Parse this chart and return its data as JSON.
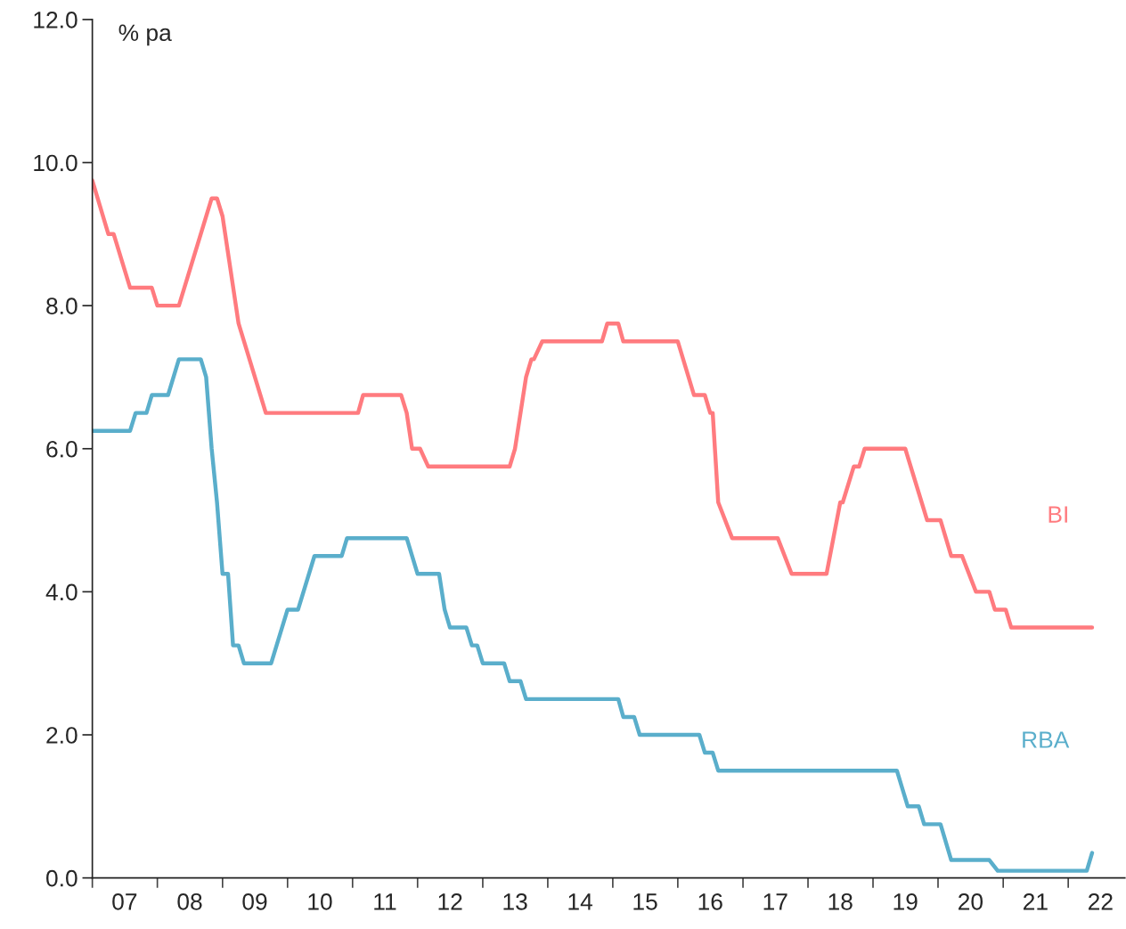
{
  "chart_data": {
    "type": "line",
    "ylabel": "% pa",
    "xlim": [
      "2007-01-01",
      "2022-11-15"
    ],
    "xticks": [
      {
        "value": "2007-01-01",
        "label": null
      },
      {
        "value": "2008-01-01",
        "label": null
      },
      {
        "value": "2009-01-01",
        "label": null
      },
      {
        "value": "2010-01-01",
        "label": null
      },
      {
        "value": "2011-01-01",
        "label": null
      },
      {
        "value": "2012-01-01",
        "label": null
      },
      {
        "value": "2013-01-01",
        "label": null
      },
      {
        "value": "2014-01-01",
        "label": null
      },
      {
        "value": "2015-01-01",
        "label": null
      },
      {
        "value": "2016-01-01",
        "label": null
      },
      {
        "value": "2017-01-01",
        "label": null
      },
      {
        "value": "2018-01-01",
        "label": null
      },
      {
        "value": "2019-01-01",
        "label": null
      },
      {
        "value": "2020-01-01",
        "label": null
      },
      {
        "value": "2021-01-01",
        "label": null
      },
      {
        "value": "2022-01-01",
        "label": null
      },
      {
        "value": "2007-07-01",
        "label": "07"
      },
      {
        "value": "2008-07-01",
        "label": "08"
      },
      {
        "value": "2009-07-01",
        "label": "09"
      },
      {
        "value": "2010-07-01",
        "label": "10"
      },
      {
        "value": "2011-07-01",
        "label": "11"
      },
      {
        "value": "2012-07-01",
        "label": "12"
      },
      {
        "value": "2013-07-01",
        "label": "13"
      },
      {
        "value": "2014-07-01",
        "label": "14"
      },
      {
        "value": "2015-07-01",
        "label": "15"
      },
      {
        "value": "2016-07-01",
        "label": "16"
      },
      {
        "value": "2017-07-01",
        "label": "17"
      },
      {
        "value": "2018-07-01",
        "label": "18"
      },
      {
        "value": "2019-07-01",
        "label": "19"
      },
      {
        "value": "2020-07-01",
        "label": "20"
      },
      {
        "value": "2021-07-01",
        "label": "21"
      },
      {
        "value": "2022-07-01",
        "label": "22"
      }
    ],
    "ylim": [
      0,
      12
    ],
    "yticks": [
      {
        "value": 0,
        "label": "0.0"
      },
      {
        "value": 2,
        "label": "2.0"
      },
      {
        "value": 4,
        "label": "4.0"
      },
      {
        "value": 6,
        "label": "6.0"
      },
      {
        "value": 8,
        "label": "8.0"
      },
      {
        "value": 10,
        "label": "10.0"
      },
      {
        "value": 12,
        "label": "12.0"
      }
    ],
    "grid": false,
    "legend": false,
    "marker": "none",
    "line_style": "solid",
    "series": [
      {
        "name": "BI",
        "color": "#ff7b7f",
        "x": [
          "2007-01-01",
          "2007-04-01",
          "2007-05-01",
          "2007-08-01",
          "2007-12-01",
          "2008-01-01",
          "2008-05-01",
          "2008-11-01",
          "2008-12-01",
          "2009-01-01",
          "2009-04-01",
          "2009-09-01",
          "2011-02-01",
          "2011-03-01",
          "2011-10-01",
          "2011-11-01",
          "2011-12-01",
          "2012-01-15",
          "2012-03-01",
          "2013-06-01",
          "2013-07-01",
          "2013-09-01",
          "2013-10-01",
          "2013-10-15",
          "2013-12-01",
          "2014-11-01",
          "2014-12-01",
          "2015-02-01",
          "2015-03-01",
          "2016-01-01",
          "2016-04-01",
          "2016-06-01",
          "2016-07-01",
          "2016-07-15",
          "2016-08-15",
          "2016-11-01",
          "2017-07-15",
          "2017-10-01",
          "2018-04-15",
          "2018-07-01",
          "2018-07-15",
          "2018-09-15",
          "2018-10-15",
          "2018-11-15",
          "2019-07-01",
          "2019-11-01",
          "2020-01-15",
          "2020-03-15",
          "2020-05-15",
          "2020-08-01",
          "2020-10-15",
          "2020-11-15",
          "2021-01-15",
          "2021-02-15",
          "2022-05-15"
        ],
        "values": [
          9.75,
          9.0,
          9.0,
          8.25,
          8.25,
          8.0,
          8.0,
          9.5,
          9.5,
          9.25,
          7.75,
          6.5,
          6.5,
          6.75,
          6.75,
          6.5,
          6.0,
          6.0,
          5.75,
          5.75,
          6.0,
          7.0,
          7.25,
          7.25,
          7.5,
          7.5,
          7.75,
          7.75,
          7.5,
          7.5,
          6.75,
          6.75,
          6.5,
          6.5,
          5.25,
          4.75,
          4.75,
          4.25,
          4.25,
          5.25,
          5.25,
          5.75,
          5.75,
          6.0,
          6.0,
          5.0,
          5.0,
          4.5,
          4.5,
          4.0,
          4.0,
          3.75,
          3.75,
          3.5,
          3.5
        ]
      },
      {
        "name": "RBA",
        "color": "#5aaecb",
        "x": [
          "2007-01-01",
          "2007-08-01",
          "2007-09-01",
          "2007-11-01",
          "2007-12-01",
          "2008-03-01",
          "2008-05-01",
          "2008-09-01",
          "2008-10-01",
          "2008-11-01",
          "2008-12-01",
          "2009-01-01",
          "2009-02-01",
          "2009-03-01",
          "2009-04-01",
          "2009-05-01",
          "2009-10-01",
          "2010-01-01",
          "2010-03-01",
          "2010-06-01",
          "2010-11-01",
          "2010-12-01",
          "2011-11-01",
          "2012-01-01",
          "2012-05-01",
          "2012-06-01",
          "2012-07-01",
          "2012-10-01",
          "2012-11-01",
          "2012-12-01",
          "2013-01-01",
          "2013-05-01",
          "2013-06-01",
          "2013-08-01",
          "2013-09-01",
          "2015-02-01",
          "2015-03-01",
          "2015-05-01",
          "2015-06-01",
          "2016-05-01",
          "2016-06-01",
          "2016-07-15",
          "2016-08-15",
          "2019-05-15",
          "2019-07-15",
          "2019-09-15",
          "2019-10-15",
          "2020-01-15",
          "2020-03-15",
          "2020-10-15",
          "2020-12-01",
          "2022-04-15",
          "2022-05-15"
        ],
        "values": [
          6.25,
          6.25,
          6.5,
          6.5,
          6.75,
          6.75,
          7.25,
          7.25,
          7.0,
          6.0,
          5.25,
          4.25,
          4.25,
          3.25,
          3.25,
          3.0,
          3.0,
          3.75,
          3.75,
          4.5,
          4.5,
          4.75,
          4.75,
          4.25,
          4.25,
          3.75,
          3.5,
          3.5,
          3.25,
          3.25,
          3.0,
          3.0,
          2.75,
          2.75,
          2.5,
          2.5,
          2.25,
          2.25,
          2.0,
          2.0,
          1.75,
          1.75,
          1.5,
          1.5,
          1.0,
          1.0,
          0.75,
          0.75,
          0.25,
          0.25,
          0.1,
          0.1,
          0.35
        ]
      }
    ]
  }
}
